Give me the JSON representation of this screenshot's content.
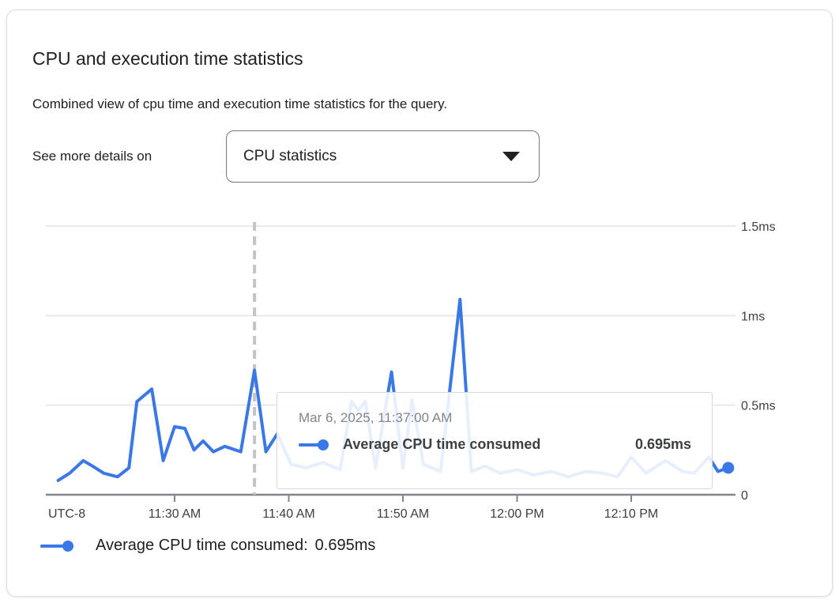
{
  "header": {
    "title": "CPU and execution time statistics",
    "subtitle": "Combined view of cpu time and execution time statistics for the query.",
    "details_label": "See more details on",
    "dropdown": {
      "value": "CPU statistics"
    }
  },
  "chart_data": {
    "type": "line",
    "title": "CPU and execution time statistics",
    "x_axis": {
      "timezone_label": "UTC-8",
      "start_time": "11:19 AM",
      "end_time": "12:19 PM",
      "ticks": [
        {
          "t": 11,
          "label": "11:30 AM"
        },
        {
          "t": 21,
          "label": "11:40 AM"
        },
        {
          "t": 31,
          "label": "11:50 AM"
        },
        {
          "t": 41,
          "label": "12:00 PM"
        },
        {
          "t": 51,
          "label": "12:10 PM"
        }
      ]
    },
    "y_axis": {
      "unit": "ms",
      "range": [
        0,
        1.55
      ],
      "grid": true,
      "ticks": [
        {
          "v": 0,
          "label": "0"
        },
        {
          "v": 0.5,
          "label": "0.5ms"
        },
        {
          "v": 1,
          "label": "1ms"
        },
        {
          "v": 1.5,
          "label": "1.5ms"
        }
      ]
    },
    "series": [
      {
        "name": "Average CPU time consumed",
        "unit": "ms",
        "color": "#3b78e7",
        "points_note": "t = minutes after 11:19 AM, v = milliseconds",
        "points": [
          [
            0.8,
            0.08
          ],
          [
            1.8,
            0.12
          ],
          [
            3,
            0.19
          ],
          [
            3.8,
            0.16
          ],
          [
            4.8,
            0.12
          ],
          [
            6,
            0.1
          ],
          [
            7,
            0.15
          ],
          [
            7.7,
            0.52
          ],
          [
            9,
            0.59
          ],
          [
            10,
            0.19
          ],
          [
            11,
            0.38
          ],
          [
            11.9,
            0.37
          ],
          [
            12.7,
            0.25
          ],
          [
            13.5,
            0.3
          ],
          [
            14.4,
            0.24
          ],
          [
            15.4,
            0.27
          ],
          [
            16.8,
            0.24
          ],
          [
            18,
            0.695
          ],
          [
            19,
            0.24
          ],
          [
            20,
            0.34
          ],
          [
            21.2,
            0.17
          ],
          [
            22.5,
            0.15
          ],
          [
            24,
            0.18
          ],
          [
            25.5,
            0.14
          ],
          [
            26.5,
            0.52
          ],
          [
            27.1,
            0.47
          ],
          [
            27.7,
            0.52
          ],
          [
            28.6,
            0.15
          ],
          [
            30,
            0.685
          ],
          [
            31,
            0.15
          ],
          [
            31.8,
            0.53
          ],
          [
            32.8,
            0.17
          ],
          [
            34.3,
            0.13
          ],
          [
            36,
            1.09
          ],
          [
            37,
            0.13
          ],
          [
            38.2,
            0.16
          ],
          [
            39.5,
            0.12
          ],
          [
            41,
            0.14
          ],
          [
            42.5,
            0.11
          ],
          [
            44,
            0.13
          ],
          [
            45.5,
            0.1
          ],
          [
            47,
            0.13
          ],
          [
            48.5,
            0.12
          ],
          [
            49.8,
            0.1
          ],
          [
            51,
            0.21
          ],
          [
            52.3,
            0.12
          ],
          [
            54,
            0.19
          ],
          [
            55.5,
            0.13
          ],
          [
            56.5,
            0.12
          ],
          [
            57.8,
            0.21
          ],
          [
            58.6,
            0.13
          ],
          [
            59.5,
            0.15
          ]
        ]
      }
    ],
    "hover": {
      "t": 18,
      "time_label": "11:37:00 AM",
      "value_ms": 0.695
    },
    "legend_position": "bottom"
  },
  "tooltip": {
    "date": "Mar 6, 2025, 11:37:00 AM",
    "series_label": "Average CPU time consumed",
    "value": "0.695ms"
  },
  "legend": {
    "label": "Average CPU time consumed:",
    "value": "0.695ms"
  },
  "colors": {
    "series": "#3b78e7",
    "grid": "#e9e9e9",
    "axis": "#80868b",
    "axis_text": "#3c4043",
    "hover_line": "#c2c4c6",
    "card_border": "#dadce0"
  }
}
